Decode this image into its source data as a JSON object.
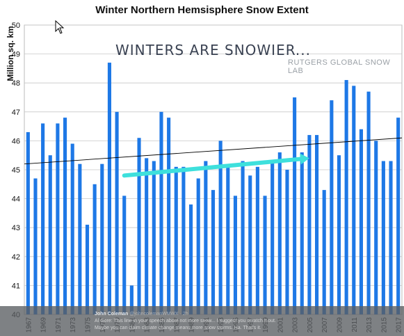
{
  "chart_data": {
    "type": "bar",
    "title": "Winter Northern Hemsisphere Snow Extent",
    "ylabel": "Million sq. km",
    "xlabel": "",
    "ylim": [
      40,
      50
    ],
    "yticks": [
      40,
      41,
      42,
      43,
      44,
      45,
      46,
      47,
      48,
      49,
      50
    ],
    "grid": true,
    "categories": [
      1967,
      1968,
      1969,
      1970,
      1971,
      1972,
      1973,
      1974,
      1975,
      1976,
      1977,
      1978,
      1979,
      1980,
      1981,
      1982,
      1983,
      1984,
      1985,
      1986,
      1987,
      1988,
      1989,
      1990,
      1991,
      1992,
      1993,
      1994,
      1995,
      1996,
      1997,
      1998,
      1999,
      2000,
      2001,
      2002,
      2003,
      2004,
      2005,
      2006,
      2007,
      2008,
      2009,
      2010,
      2011,
      2012,
      2013,
      2014,
      2015,
      2016,
      2017
    ],
    "xtick_labels": [
      "1967",
      "1969",
      "1971",
      "1973",
      "1975",
      "1977",
      "1979",
      "1981",
      "1983",
      "1985",
      "1987",
      "1989",
      "1991",
      "1993",
      "1995",
      "1997",
      "1999",
      "2001",
      "2003",
      "2005",
      "2007",
      "2009",
      "2011",
      "2013",
      "2015",
      "2017"
    ],
    "values": [
      46.3,
      44.7,
      46.6,
      45.5,
      46.6,
      46.8,
      45.9,
      45.2,
      43.1,
      44.5,
      45.2,
      48.7,
      47.0,
      44.1,
      41.0,
      46.1,
      45.4,
      45.3,
      47.0,
      46.8,
      45.1,
      45.1,
      43.8,
      44.7,
      45.3,
      44.3,
      46.0,
      45.1,
      44.1,
      45.3,
      44.8,
      45.1,
      44.1,
      45.3,
      45.6,
      45.0,
      47.5,
      45.6,
      46.2,
      46.2,
      44.3,
      47.4,
      45.5,
      48.1,
      47.9,
      46.4,
      47.7,
      46.0,
      45.3,
      45.3,
      46.8
    ],
    "bar_color": "#1e78e6",
    "trendline": {
      "start_value": 45.2,
      "end_value": 46.1,
      "color": "#000000"
    },
    "highlight_arrow": {
      "from_year": 1980,
      "from_value": 44.8,
      "to_year": 2005,
      "to_value": 45.4,
      "color": "#3ee0dc"
    },
    "annotations": {
      "headline": "WINTERS ARE SNOWIER...",
      "source": "RUTGERS GLOBAL SNOW LAB"
    }
  },
  "tweet": {
    "author": "John Coleman",
    "handle": "@johncolemanWMWX · 2h",
    "line1": "Al Gore: This line in your speech about not more snow... I suggest you scratch it out.",
    "line2": "Maybe you can claim climate change means more snow storms. Ha. That's it."
  },
  "colors": {
    "grid": "#c8c8c8",
    "axis_text": "#111111",
    "overlay": "#5a5e62"
  }
}
